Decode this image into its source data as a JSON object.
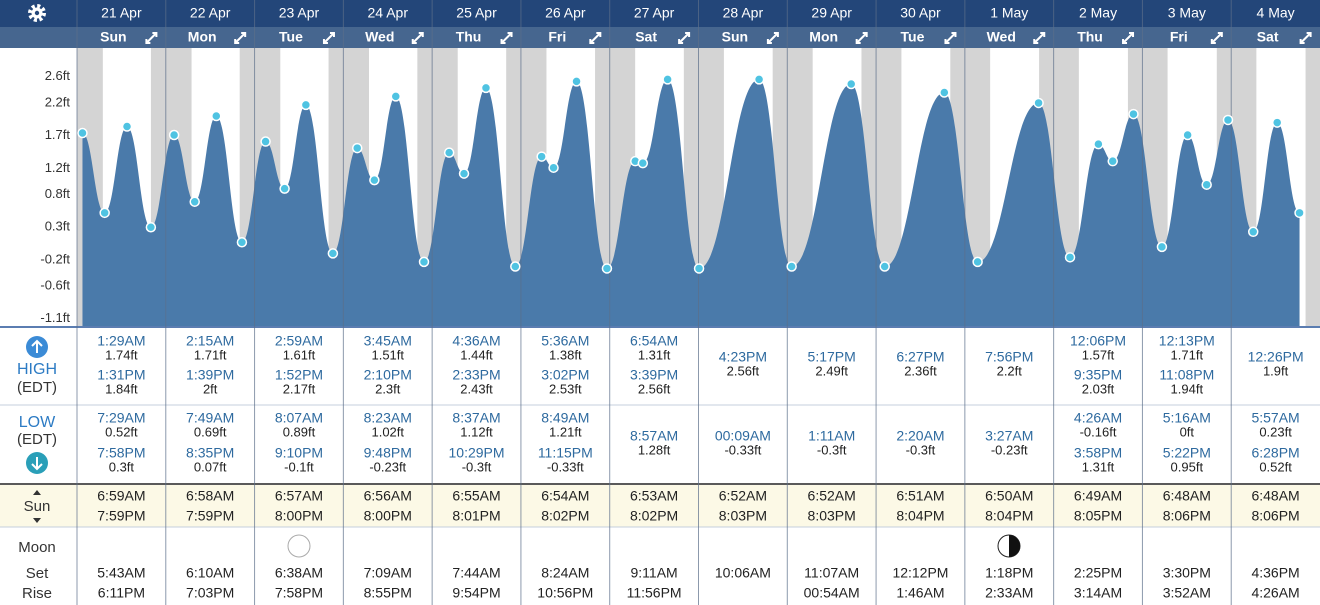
{
  "header": {
    "dates": [
      "21 Apr",
      "22 Apr",
      "23 Apr",
      "24 Apr",
      "25 Apr",
      "26 Apr",
      "27 Apr",
      "28 Apr",
      "29 Apr",
      "30 Apr",
      "1 May",
      "2 May",
      "3 May",
      "4 May"
    ],
    "weekdays": [
      "Sun",
      "Mon",
      "Tue",
      "Wed",
      "Thu",
      "Fri",
      "Sat",
      "Sun",
      "Mon",
      "Tue",
      "Wed",
      "Thu",
      "Fri",
      "Sat"
    ]
  },
  "chart_data": {
    "type": "area",
    "color": "#4a7aaa",
    "point_color": "#4fc3e2",
    "x": [
      1.48,
      7.48,
      13.52,
      19.97,
      26.25,
      31.82,
      37.65,
      44.58,
      50.98,
      56.12,
      61.87,
      69.17,
      75.75,
      80.38,
      86.17,
      93.8,
      100.6,
      104.62,
      110.55,
      118.48,
      125.6,
      128.82,
      135.03,
      143.25,
      150.9,
      152.95,
      159.65,
      168.15,
      184.38,
      193.18,
      209.28,
      218.33,
      234.45,
      243.45,
      259.93,
      268.43,
      276.1,
      279.97,
      285.58,
      293.27,
      300.22,
      305.37,
      311.13,
      317.95,
      324.43,
      330.47
    ],
    "values": [
      1.74,
      0.52,
      1.84,
      0.3,
      1.71,
      0.69,
      2,
      0.07,
      1.61,
      0.89,
      2.17,
      -0.1,
      1.51,
      1.02,
      2.3,
      -0.23,
      1.44,
      1.12,
      2.43,
      -0.3,
      1.38,
      1.21,
      2.53,
      -0.33,
      1.31,
      1.28,
      2.56,
      -0.33,
      2.56,
      -0.3,
      2.49,
      -0.3,
      2.36,
      -0.23,
      2.2,
      -0.16,
      1.57,
      1.31,
      2.03,
      0,
      1.71,
      0.95,
      1.94,
      0.23,
      1.9,
      0.52
    ],
    "xlim": [
      0,
      336
    ],
    "ylim": [
      -1.21,
      3.04
    ],
    "yticks": [
      {
        "value": -1.1,
        "label": "-1.1ft"
      },
      {
        "value": -0.6,
        "label": "-0.6ft"
      },
      {
        "value": -0.2,
        "label": "-0.2ft"
      },
      {
        "value": 0.3,
        "label": "0.3ft"
      },
      {
        "value": 0.8,
        "label": "0.8ft"
      },
      {
        "value": 1.2,
        "label": "1.2ft"
      },
      {
        "value": 1.7,
        "label": "1.7ft"
      },
      {
        "value": 2.2,
        "label": "2.2ft"
      },
      {
        "value": 2.6,
        "label": "2.6ft"
      }
    ]
  },
  "table": {
    "high_label": "HIGH",
    "high_tz": "(EDT)",
    "low_label": "LOW",
    "low_tz": "(EDT)",
    "high": [
      [
        {
          "time": "1:29AM",
          "height": "1.74ft"
        },
        {
          "time": "1:31PM",
          "height": "1.84ft"
        }
      ],
      [
        {
          "time": "2:15AM",
          "height": "1.71ft"
        },
        {
          "time": "1:39PM",
          "height": "2ft"
        }
      ],
      [
        {
          "time": "2:59AM",
          "height": "1.61ft"
        },
        {
          "time": "1:52PM",
          "height": "2.17ft"
        }
      ],
      [
        {
          "time": "3:45AM",
          "height": "1.51ft"
        },
        {
          "time": "2:10PM",
          "height": "2.3ft"
        }
      ],
      [
        {
          "time": "4:36AM",
          "height": "1.44ft"
        },
        {
          "time": "2:33PM",
          "height": "2.43ft"
        }
      ],
      [
        {
          "time": "5:36AM",
          "height": "1.38ft"
        },
        {
          "time": "3:02PM",
          "height": "2.53ft"
        }
      ],
      [
        {
          "time": "6:54AM",
          "height": "1.31ft"
        },
        {
          "time": "3:39PM",
          "height": "2.56ft"
        }
      ],
      [
        {
          "time": "4:23PM",
          "height": "2.56ft"
        }
      ],
      [
        {
          "time": "5:17PM",
          "height": "2.49ft"
        }
      ],
      [
        {
          "time": "6:27PM",
          "height": "2.36ft"
        }
      ],
      [
        {
          "time": "7:56PM",
          "height": "2.2ft"
        }
      ],
      [
        {
          "time": "12:06PM",
          "height": "1.57ft"
        },
        {
          "time": "9:35PM",
          "height": "2.03ft"
        }
      ],
      [
        {
          "time": "12:13PM",
          "height": "1.71ft"
        },
        {
          "time": "11:08PM",
          "height": "1.94ft"
        }
      ],
      [
        {
          "time": "12:26PM",
          "height": "1.9ft"
        }
      ]
    ],
    "low": [
      [
        {
          "time": "7:29AM",
          "height": "0.52ft"
        },
        {
          "time": "7:58PM",
          "height": "0.3ft"
        }
      ],
      [
        {
          "time": "7:49AM",
          "height": "0.69ft"
        },
        {
          "time": "8:35PM",
          "height": "0.07ft"
        }
      ],
      [
        {
          "time": "8:07AM",
          "height": "0.89ft"
        },
        {
          "time": "9:10PM",
          "height": "-0.1ft"
        }
      ],
      [
        {
          "time": "8:23AM",
          "height": "1.02ft"
        },
        {
          "time": "9:48PM",
          "height": "-0.23ft"
        }
      ],
      [
        {
          "time": "8:37AM",
          "height": "1.12ft"
        },
        {
          "time": "10:29PM",
          "height": "-0.3ft"
        }
      ],
      [
        {
          "time": "8:49AM",
          "height": "1.21ft"
        },
        {
          "time": "11:15PM",
          "height": "-0.33ft"
        }
      ],
      [
        {
          "time": "8:57AM",
          "height": "1.28ft"
        }
      ],
      [
        {
          "time": "00:09AM",
          "height": "-0.33ft"
        }
      ],
      [
        {
          "time": "1:11AM",
          "height": "-0.3ft"
        }
      ],
      [
        {
          "time": "2:20AM",
          "height": "-0.3ft"
        }
      ],
      [
        {
          "time": "3:27AM",
          "height": "-0.23ft"
        }
      ],
      [
        {
          "time": "4:26AM",
          "height": "-0.16ft"
        },
        {
          "time": "3:58PM",
          "height": "1.31ft"
        }
      ],
      [
        {
          "time": "5:16AM",
          "height": "0ft"
        },
        {
          "time": "5:22PM",
          "height": "0.95ft"
        }
      ],
      [
        {
          "time": "5:57AM",
          "height": "0.23ft"
        },
        {
          "time": "6:28PM",
          "height": "0.52ft"
        }
      ]
    ],
    "sun_label": "Sun",
    "sunrise": [
      "6:59AM",
      "6:58AM",
      "6:57AM",
      "6:56AM",
      "6:55AM",
      "6:54AM",
      "6:53AM",
      "6:52AM",
      "6:52AM",
      "6:51AM",
      "6:50AM",
      "6:49AM",
      "6:48AM",
      "6:48AM"
    ],
    "sunset": [
      "7:59PM",
      "7:59PM",
      "8:00PM",
      "8:00PM",
      "8:01PM",
      "8:02PM",
      "8:02PM",
      "8:03PM",
      "8:03PM",
      "8:04PM",
      "8:04PM",
      "8:05PM",
      "8:06PM",
      "8:06PM"
    ],
    "moon_label": "Moon",
    "set_label": "Set",
    "rise_label": "Rise",
    "moonset": [
      "5:43AM",
      "6:10AM",
      "6:38AM",
      "7:09AM",
      "7:44AM",
      "8:24AM",
      "9:11AM",
      "10:06AM",
      "11:07AM",
      "12:12PM",
      "1:18PM",
      "2:25PM",
      "3:30PM",
      "4:36PM"
    ],
    "moonrise": [
      "6:11PM",
      "7:03PM",
      "7:58PM",
      "8:55PM",
      "9:54PM",
      "10:56PM",
      "11:56PM",
      null,
      "00:54AM",
      "1:46AM",
      "2:33AM",
      "3:14AM",
      "3:52AM",
      "4:26AM"
    ]
  }
}
